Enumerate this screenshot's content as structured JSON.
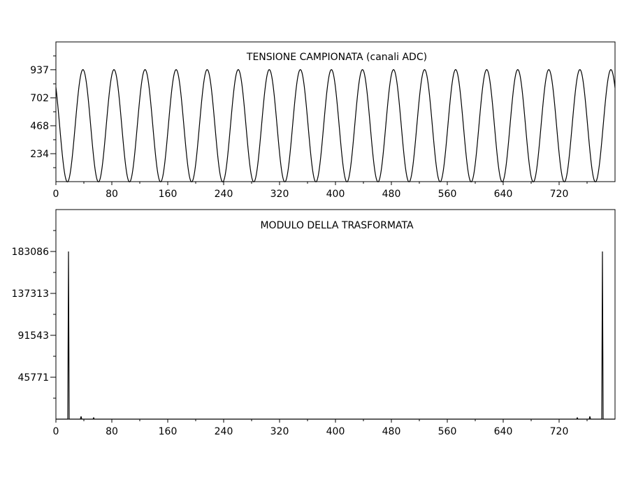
{
  "chart_data": [
    {
      "type": "line",
      "title": "TENSIONE CAMPIONATA (canali ADC)",
      "xlabel": "",
      "ylabel": "",
      "xlim": [
        0,
        800
      ],
      "ylim": [
        0,
        1170
      ],
      "x_ticks": [
        0,
        80,
        160,
        240,
        320,
        400,
        480,
        560,
        640,
        720
      ],
      "x_minor_ticks": [
        40,
        120,
        200,
        280,
        360,
        440,
        520,
        600,
        680,
        760
      ],
      "y_ticks": [
        234,
        468,
        702,
        937
      ],
      "y_minor_ticks": [
        117,
        351,
        585,
        819,
        1053
      ],
      "grid": false,
      "signal": {
        "kind": "sinusoid",
        "samples": 800,
        "offset": 468,
        "amplitude": 470,
        "period": 44.44,
        "value_at_x0": 790
      }
    },
    {
      "type": "line",
      "title": "MODULO DELLA TRASFORMATA",
      "xlabel": "",
      "ylabel": "",
      "xlim": [
        0,
        800
      ],
      "ylim": [
        0,
        228857
      ],
      "x_ticks": [
        0,
        80,
        160,
        240,
        320,
        400,
        480,
        560,
        640,
        720
      ],
      "x_minor_ticks": [
        40,
        120,
        200,
        280,
        360,
        440,
        520,
        600,
        680,
        760
      ],
      "y_ticks": [
        45771,
        91543,
        137313,
        183086
      ],
      "y_minor_ticks": [
        22886,
        68657,
        114428,
        160200,
        205971
      ],
      "grid": false,
      "points": [
        [
          0,
          0
        ],
        [
          17,
          0
        ],
        [
          18,
          183086
        ],
        [
          19,
          0
        ],
        [
          35,
          0
        ],
        [
          36,
          3000
        ],
        [
          37,
          0
        ],
        [
          53,
          0
        ],
        [
          54,
          1500
        ],
        [
          55,
          0
        ],
        [
          745,
          0
        ],
        [
          746,
          1500
        ],
        [
          747,
          0
        ],
        [
          763,
          0
        ],
        [
          764,
          3000
        ],
        [
          765,
          0
        ],
        [
          781,
          0
        ],
        [
          782,
          183086
        ],
        [
          783,
          0
        ],
        [
          800,
          0
        ]
      ]
    }
  ]
}
